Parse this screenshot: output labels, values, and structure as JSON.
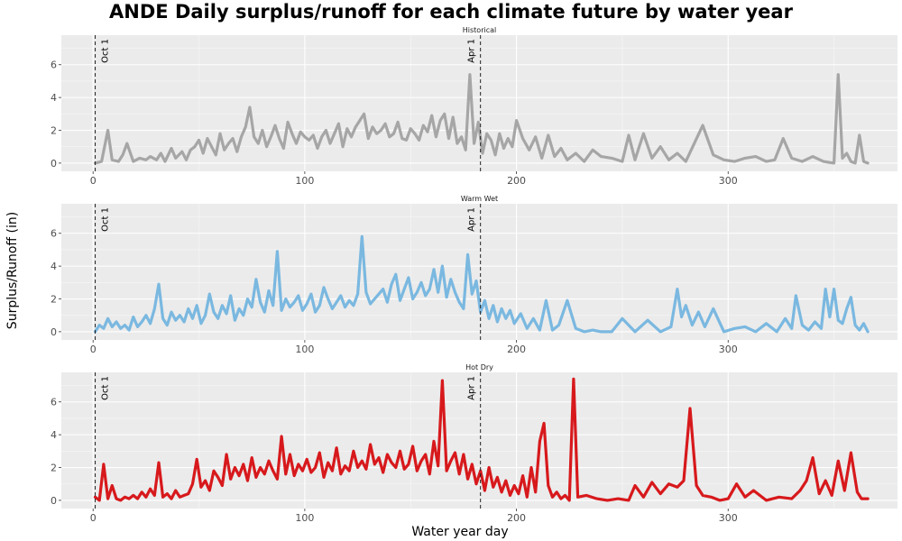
{
  "chart_data": {
    "type": "line",
    "title": "ANDE Daily surplus/runoff for each climate future by water year",
    "xlabel": "Water year day",
    "ylabel": "Surplus/Runoff (in)",
    "xlim": [
      -15,
      380
    ],
    "ylim": [
      -0.5,
      7.8
    ],
    "x_ticks": [
      0,
      100,
      200,
      300
    ],
    "y_ticks": [
      0,
      2,
      4,
      6
    ],
    "grid": true,
    "reference_lines": [
      {
        "x": 1,
        "label": "Oct 1"
      },
      {
        "x": 183,
        "label": "Apr 1"
      }
    ],
    "panels": [
      {
        "name": "Historical",
        "color": "#a6a6a6",
        "x": [
          1,
          4,
          7,
          9,
          12,
          14,
          16,
          19,
          22,
          25,
          27,
          30,
          32,
          34,
          37,
          39,
          42,
          44,
          46,
          48,
          50,
          52,
          54,
          56,
          58,
          60,
          62,
          64,
          66,
          68,
          70,
          72,
          74,
          76,
          78,
          80,
          82,
          84,
          86,
          88,
          90,
          92,
          94,
          96,
          98,
          100,
          102,
          104,
          106,
          108,
          110,
          112,
          114,
          116,
          118,
          120,
          122,
          124,
          126,
          128,
          130,
          132,
          134,
          136,
          138,
          140,
          142,
          144,
          146,
          148,
          150,
          152,
          154,
          156,
          158,
          160,
          162,
          164,
          166,
          168,
          170,
          172,
          174,
          176,
          178,
          180,
          182,
          184,
          186,
          188,
          190,
          192,
          194,
          196,
          198,
          200,
          203,
          206,
          209,
          212,
          215,
          218,
          221,
          224,
          228,
          232,
          236,
          240,
          245,
          250,
          253,
          256,
          260,
          264,
          268,
          272,
          276,
          280,
          284,
          288,
          293,
          298,
          303,
          308,
          313,
          318,
          322,
          326,
          330,
          335,
          340,
          345,
          350,
          352,
          354,
          356,
          358,
          360,
          362,
          364,
          366
        ],
        "y": [
          0,
          0.1,
          2.0,
          0.2,
          0.1,
          0.5,
          1.2,
          0.1,
          0.3,
          0.2,
          0.4,
          0.2,
          0.6,
          0.1,
          0.9,
          0.3,
          0.7,
          0.2,
          0.8,
          1.0,
          1.4,
          0.6,
          1.5,
          1.0,
          0.5,
          1.8,
          0.8,
          1.2,
          1.5,
          0.7,
          1.6,
          2.2,
          3.4,
          1.6,
          1.2,
          2.0,
          1.0,
          1.6,
          2.3,
          1.5,
          0.9,
          2.5,
          1.8,
          1.2,
          1.9,
          1.6,
          1.4,
          1.7,
          0.9,
          1.6,
          2.0,
          1.2,
          1.8,
          2.4,
          1.0,
          2.1,
          1.6,
          2.2,
          2.6,
          3.0,
          1.5,
          2.2,
          1.8,
          2.0,
          2.4,
          1.6,
          1.8,
          2.5,
          1.5,
          1.4,
          2.1,
          1.8,
          1.4,
          2.3,
          1.9,
          2.9,
          1.6,
          2.6,
          3.0,
          1.5,
          2.8,
          1.2,
          1.6,
          0.8,
          5.4,
          1.2,
          2.5,
          0.6,
          1.8,
          1.4,
          0.5,
          1.8,
          0.9,
          1.5,
          1.0,
          2.6,
          1.5,
          0.8,
          1.6,
          0.3,
          1.7,
          0.4,
          0.9,
          0.2,
          0.6,
          0.1,
          0.8,
          0.4,
          0.3,
          0.1,
          1.7,
          0.2,
          1.8,
          0.3,
          1.0,
          0.2,
          0.6,
          0.1,
          1.2,
          2.3,
          0.5,
          0.2,
          0.1,
          0.3,
          0.4,
          0.1,
          0.2,
          1.5,
          0.3,
          0.1,
          0.4,
          0.1,
          0,
          5.4,
          0.3,
          0.6,
          0.1,
          0,
          1.7,
          0.1,
          0
        ],
        "ymax_approx": 5.4
      },
      {
        "name": "Warm Wet",
        "color": "#7ab8e0",
        "x": [
          1,
          3,
          5,
          7,
          9,
          11,
          13,
          15,
          17,
          19,
          21,
          23,
          25,
          27,
          29,
          31,
          33,
          35,
          37,
          39,
          41,
          43,
          45,
          47,
          49,
          51,
          53,
          55,
          57,
          59,
          61,
          63,
          65,
          67,
          69,
          71,
          73,
          75,
          77,
          79,
          81,
          83,
          85,
          87,
          89,
          91,
          93,
          95,
          97,
          99,
          101,
          103,
          105,
          107,
          109,
          111,
          113,
          115,
          117,
          119,
          121,
          123,
          125,
          127,
          129,
          131,
          133,
          135,
          137,
          139,
          141,
          143,
          145,
          147,
          149,
          151,
          153,
          155,
          157,
          159,
          161,
          163,
          165,
          167,
          169,
          171,
          173,
          175,
          177,
          179,
          181,
          183,
          185,
          187,
          189,
          191,
          193,
          195,
          197,
          199,
          202,
          205,
          208,
          211,
          214,
          217,
          220,
          224,
          228,
          232,
          236,
          240,
          245,
          250,
          256,
          262,
          268,
          273,
          276,
          278,
          280,
          283,
          286,
          289,
          293,
          298,
          303,
          308,
          313,
          318,
          323,
          327,
          330,
          332,
          335,
          338,
          341,
          344,
          346,
          348,
          350,
          352,
          354,
          356,
          358,
          360,
          362,
          364,
          366
        ],
        "y": [
          0,
          0.4,
          0.2,
          0.8,
          0.3,
          0.6,
          0.2,
          0.4,
          0.1,
          0.9,
          0.3,
          0.6,
          1.0,
          0.5,
          1.4,
          2.9,
          0.8,
          0.4,
          1.2,
          0.7,
          1.0,
          0.6,
          1.4,
          0.8,
          1.6,
          0.5,
          1.0,
          2.3,
          1.2,
          0.8,
          1.6,
          1.1,
          2.2,
          0.7,
          1.4,
          1.0,
          2.0,
          1.5,
          3.2,
          1.8,
          1.2,
          2.5,
          1.6,
          4.9,
          1.3,
          2.0,
          1.5,
          1.8,
          2.2,
          1.3,
          1.7,
          2.3,
          1.2,
          1.6,
          2.7,
          2.0,
          1.4,
          1.8,
          2.2,
          1.5,
          1.9,
          1.6,
          2.3,
          5.8,
          2.4,
          1.7,
          2.0,
          2.3,
          2.6,
          1.8,
          2.9,
          3.5,
          1.9,
          2.6,
          3.3,
          2.0,
          2.4,
          3.0,
          2.2,
          2.6,
          3.8,
          2.4,
          4.0,
          2.1,
          3.2,
          2.4,
          1.8,
          1.4,
          4.7,
          2.3,
          3.1,
          1.2,
          1.9,
          0.8,
          1.6,
          0.6,
          1.4,
          0.8,
          1.3,
          0.5,
          1.1,
          0.2,
          0.8,
          0.1,
          1.9,
          0.1,
          0.4,
          1.9,
          0.2,
          0,
          0.1,
          0,
          0,
          0.8,
          0,
          0.7,
          0,
          0.3,
          2.6,
          0.9,
          1.6,
          0.4,
          1.2,
          0.3,
          1.4,
          0,
          0.2,
          0.3,
          0,
          0.5,
          0,
          0.8,
          0.2,
          2.2,
          0.4,
          0.1,
          0.6,
          0.2,
          2.6,
          0.9,
          2.6,
          0.7,
          0.5,
          1.4,
          2.1,
          0.4,
          0.1,
          0.5,
          0
        ],
        "ymax_approx": 5.8
      },
      {
        "name": "Hot Dry",
        "color": "#d7191c",
        "x": [
          1,
          3,
          5,
          7,
          9,
          11,
          13,
          15,
          17,
          19,
          21,
          23,
          25,
          27,
          29,
          31,
          33,
          35,
          37,
          39,
          41,
          43,
          45,
          47,
          49,
          51,
          53,
          55,
          57,
          59,
          61,
          63,
          65,
          67,
          69,
          71,
          73,
          75,
          77,
          79,
          81,
          83,
          85,
          87,
          89,
          91,
          93,
          95,
          97,
          99,
          101,
          103,
          105,
          107,
          109,
          111,
          113,
          115,
          117,
          119,
          121,
          123,
          125,
          127,
          129,
          131,
          133,
          135,
          137,
          139,
          141,
          143,
          145,
          147,
          149,
          151,
          153,
          155,
          157,
          159,
          161,
          163,
          165,
          167,
          169,
          171,
          173,
          175,
          177,
          179,
          181,
          183,
          185,
          187,
          189,
          191,
          193,
          195,
          197,
          199,
          201,
          203,
          205,
          207,
          209,
          211,
          213,
          215,
          217,
          219,
          221,
          223,
          225,
          227,
          229,
          233,
          238,
          243,
          248,
          253,
          256,
          260,
          264,
          268,
          272,
          276,
          279,
          282,
          285,
          288,
          292,
          296,
          300,
          304,
          308,
          312,
          318,
          324,
          330,
          334,
          337,
          340,
          343,
          346,
          349,
          352,
          355,
          358,
          361,
          363,
          366
        ],
        "y": [
          0.2,
          0,
          2.2,
          0.1,
          0.9,
          0.1,
          0,
          0.2,
          0.1,
          0.3,
          0.1,
          0.5,
          0.2,
          0.7,
          0.3,
          2.3,
          0.2,
          0.4,
          0.1,
          0.6,
          0.2,
          0.3,
          0.4,
          1.0,
          2.5,
          0.8,
          1.2,
          0.6,
          1.8,
          1.4,
          0.9,
          2.8,
          1.3,
          2.0,
          1.5,
          2.2,
          1.2,
          2.6,
          1.4,
          2.0,
          1.6,
          2.4,
          1.8,
          1.3,
          3.9,
          1.6,
          2.8,
          1.5,
          2.2,
          1.8,
          2.5,
          1.7,
          2.0,
          2.9,
          1.4,
          2.3,
          1.8,
          3.2,
          1.6,
          2.1,
          1.8,
          3.0,
          2.0,
          2.4,
          1.9,
          3.4,
          2.2,
          2.6,
          1.7,
          2.8,
          2.3,
          2.0,
          3.0,
          1.9,
          2.2,
          3.3,
          1.8,
          2.4,
          2.8,
          1.6,
          3.6,
          2.1,
          7.3,
          1.8,
          2.4,
          2.9,
          1.6,
          2.8,
          1.3,
          2.2,
          1.0,
          1.8,
          0.6,
          2.0,
          0.8,
          1.4,
          0.5,
          1.2,
          0.3,
          0.9,
          0.4,
          1.5,
          0.2,
          2.0,
          0.5,
          3.6,
          4.7,
          0.9,
          0.2,
          0.5,
          0.1,
          0.3,
          0,
          7.4,
          0.2,
          0.3,
          0.1,
          0,
          0.1,
          0,
          0.9,
          0.2,
          1.1,
          0.4,
          1.0,
          0.8,
          1.2,
          5.6,
          0.9,
          0.3,
          0.2,
          0,
          0.1,
          1.0,
          0.2,
          0.6,
          0,
          0.2,
          0.1,
          0.6,
          1.2,
          2.6,
          0.4,
          1.2,
          0.3,
          2.4,
          0.6,
          2.9,
          0.5,
          0.1,
          0.1
        ],
        "ymax_approx": 7.4
      }
    ]
  }
}
